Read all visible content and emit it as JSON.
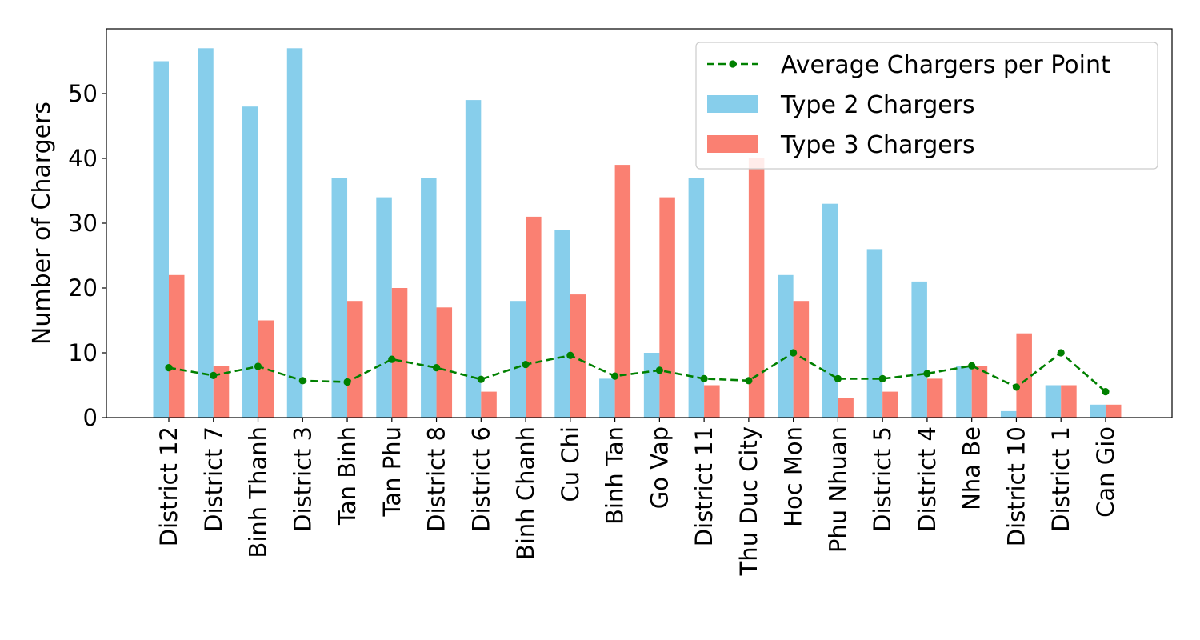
{
  "chart_data": {
    "type": "bar",
    "title": "",
    "xlabel": "",
    "ylabel": "Number of Chargers",
    "ylim": [
      0,
      60
    ],
    "yticks": [
      0,
      10,
      20,
      30,
      40,
      50
    ],
    "grid": false,
    "legend_position": "top-right",
    "categories": [
      "District 12",
      "District 7",
      "Binh Thanh",
      "District 3",
      "Tan Binh",
      "Tan Phu",
      "District 8",
      "District 6",
      "Binh Chanh",
      "Cu Chi",
      "Binh Tan",
      "Go Vap",
      "District 11",
      "Thu Duc City",
      "Hoc Mon",
      "Phu Nhuan",
      "District 5",
      "District 4",
      "Nha Be",
      "District 10",
      "District 1",
      "Can Gio"
    ],
    "series": [
      {
        "name": "Type 2 Chargers",
        "type": "bar",
        "color": "#87CEEB",
        "values": [
          55,
          57,
          48,
          57,
          37,
          34,
          37,
          49,
          18,
          29,
          6,
          10,
          37,
          0,
          22,
          33,
          26,
          21,
          8,
          1,
          5,
          2
        ]
      },
      {
        "name": "Type 3 Chargers",
        "type": "bar",
        "color": "#FA8072",
        "values": [
          22,
          8,
          15,
          0,
          18,
          20,
          17,
          4,
          31,
          19,
          39,
          34,
          5,
          40,
          18,
          3,
          4,
          6,
          8,
          13,
          5,
          2
        ]
      },
      {
        "name": "Average Chargers per Point",
        "type": "line",
        "style": "dashed",
        "marker": "circle",
        "color": "#008000",
        "values": [
          7.7,
          6.5,
          7.9,
          5.7,
          5.5,
          9.0,
          7.7,
          5.9,
          8.2,
          9.6,
          6.4,
          7.3,
          6.0,
          5.7,
          10.0,
          6.0,
          6.0,
          6.8,
          8.0,
          4.7,
          10.0,
          4.0
        ]
      }
    ]
  }
}
